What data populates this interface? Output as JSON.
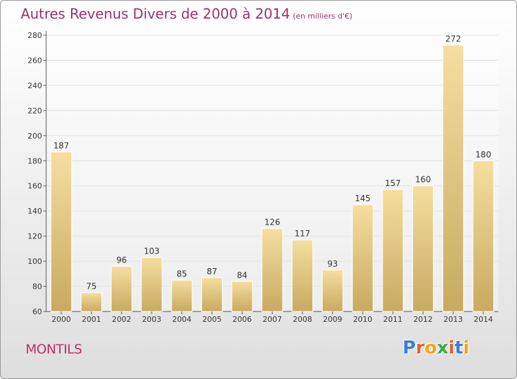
{
  "title": "Autres Revenus Divers de 2000 à 2014",
  "subtitle": "(en milliers d'€)",
  "commune": "MONTILS",
  "brand": {
    "letters": [
      "P",
      "r",
      "o",
      "x",
      "i",
      "t",
      "i"
    ],
    "colors": [
      "#3a7fd0",
      "#e0642a",
      "#f0a51a",
      "#40a848",
      "#e0642a",
      "#3a7fd0",
      "#f0a51a"
    ]
  },
  "colors": {
    "bar_light": "#f5dea0",
    "bar_dark": "#c8aa60",
    "title": "#a0306a",
    "grid": "#e2e2e2"
  },
  "chart_data": {
    "type": "bar",
    "title": "Autres Revenus Divers de 2000 à 2014",
    "subtitle": "(en milliers d'€)",
    "categories": [
      "2000",
      "2001",
      "2002",
      "2003",
      "2004",
      "2005",
      "2006",
      "2007",
      "2008",
      "2009",
      "2010",
      "2011",
      "2012",
      "2013",
      "2014"
    ],
    "values": [
      187,
      75,
      96,
      103,
      85,
      87,
      84,
      126,
      117,
      93,
      145,
      157,
      160,
      272,
      180
    ],
    "ylim": [
      60,
      280
    ],
    "yticks": [
      60,
      80,
      100,
      120,
      140,
      160,
      180,
      200,
      220,
      240,
      260,
      280
    ],
    "grid": true,
    "xlabel": "",
    "ylabel": ""
  }
}
